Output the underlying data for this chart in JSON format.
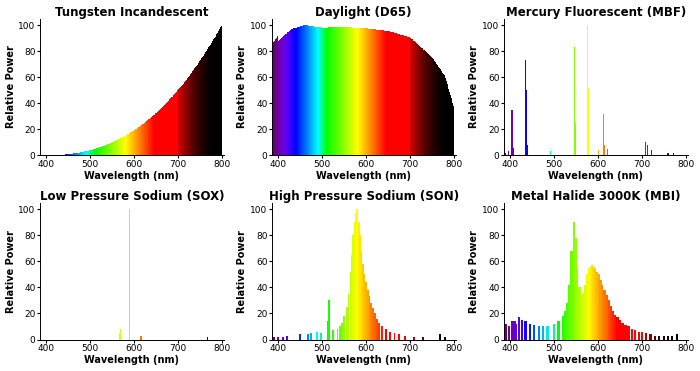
{
  "titles": [
    "Tungsten Incandescent",
    "Daylight (D65)",
    "Mercury Fluorescent (MBF)",
    "Low Pressure Sodium (SOX)",
    "High Pressure Sodium (SON)",
    "Metal Halide 3000K (MBI)"
  ],
  "xlabel": "Wavelength (nm)",
  "ylabel": "Relative Power",
  "xlim": [
    385,
    805
  ],
  "ylim": [
    0,
    105
  ],
  "yticks": [
    0,
    20,
    40,
    60,
    80,
    100
  ],
  "xticks": [
    400,
    500,
    600,
    700,
    800
  ],
  "title_fontsize": 8.5,
  "label_fontsize": 7,
  "tick_fontsize": 6.5,
  "mbf_lines": [
    [
      390,
      2
    ],
    [
      397,
      3
    ],
    [
      404,
      35
    ],
    [
      408,
      6
    ],
    [
      435,
      73
    ],
    [
      436,
      50
    ],
    [
      440,
      8
    ],
    [
      492,
      3
    ],
    [
      546,
      83
    ],
    [
      548,
      25
    ],
    [
      577,
      100
    ],
    [
      579,
      52
    ],
    [
      601,
      4
    ],
    [
      612,
      32
    ],
    [
      615,
      8
    ],
    [
      623,
      5
    ],
    [
      708,
      10
    ],
    [
      714,
      8
    ],
    [
      723,
      4
    ],
    [
      760,
      2
    ],
    [
      773,
      2
    ]
  ],
  "sox_lines": [
    [
      589,
      100
    ],
    [
      590,
      90
    ],
    [
      569,
      8
    ],
    [
      568,
      5
    ],
    [
      616,
      3
    ],
    [
      767,
      2
    ]
  ],
  "son_lines": [
    [
      380,
      1
    ],
    [
      390,
      2
    ],
    [
      400,
      2
    ],
    [
      410,
      2
    ],
    [
      420,
      3
    ],
    [
      450,
      4
    ],
    [
      467,
      4
    ],
    [
      475,
      5
    ],
    [
      489,
      6
    ],
    [
      498,
      5
    ],
    [
      514,
      14
    ],
    [
      516,
      30
    ],
    [
      525,
      7
    ],
    [
      535,
      8
    ],
    [
      540,
      10
    ],
    [
      545,
      13
    ],
    [
      550,
      18
    ],
    [
      556,
      25
    ],
    [
      560,
      35
    ],
    [
      565,
      52
    ],
    [
      568,
      65
    ],
    [
      571,
      80
    ],
    [
      574,
      90
    ],
    [
      577,
      97
    ],
    [
      579,
      100
    ],
    [
      581,
      98
    ],
    [
      584,
      90
    ],
    [
      587,
      80
    ],
    [
      590,
      68
    ],
    [
      593,
      58
    ],
    [
      596,
      50
    ],
    [
      600,
      44
    ],
    [
      604,
      38
    ],
    [
      608,
      33
    ],
    [
      612,
      28
    ],
    [
      616,
      24
    ],
    [
      620,
      20
    ],
    [
      625,
      16
    ],
    [
      630,
      13
    ],
    [
      637,
      10
    ],
    [
      645,
      8
    ],
    [
      655,
      6
    ],
    [
      665,
      5
    ],
    [
      675,
      4
    ],
    [
      690,
      3
    ],
    [
      710,
      2
    ],
    [
      730,
      2
    ],
    [
      769,
      4
    ],
    [
      780,
      2
    ]
  ],
  "mbi_lines": [
    [
      390,
      12
    ],
    [
      397,
      10
    ],
    [
      405,
      14
    ],
    [
      410,
      14
    ],
    [
      413,
      12
    ],
    [
      420,
      17
    ],
    [
      427,
      15
    ],
    [
      435,
      14
    ],
    [
      445,
      12
    ],
    [
      455,
      11
    ],
    [
      465,
      10
    ],
    [
      475,
      10
    ],
    [
      485,
      10
    ],
    [
      500,
      12
    ],
    [
      510,
      14
    ],
    [
      520,
      18
    ],
    [
      526,
      22
    ],
    [
      530,
      28
    ],
    [
      535,
      42
    ],
    [
      540,
      68
    ],
    [
      546,
      90
    ],
    [
      549,
      78
    ],
    [
      553,
      55
    ],
    [
      558,
      40
    ],
    [
      562,
      33
    ],
    [
      566,
      36
    ],
    [
      570,
      42
    ],
    [
      575,
      50
    ],
    [
      579,
      55
    ],
    [
      583,
      56
    ],
    [
      587,
      57
    ],
    [
      590,
      56
    ],
    [
      594,
      54
    ],
    [
      598,
      52
    ],
    [
      602,
      50
    ],
    [
      606,
      46
    ],
    [
      610,
      42
    ],
    [
      615,
      38
    ],
    [
      620,
      34
    ],
    [
      625,
      30
    ],
    [
      630,
      26
    ],
    [
      635,
      22
    ],
    [
      640,
      19
    ],
    [
      645,
      17
    ],
    [
      650,
      15
    ],
    [
      656,
      13
    ],
    [
      663,
      11
    ],
    [
      670,
      10
    ],
    [
      678,
      8
    ],
    [
      685,
      7
    ],
    [
      693,
      6
    ],
    [
      700,
      6
    ],
    [
      710,
      5
    ],
    [
      720,
      4
    ],
    [
      730,
      3
    ],
    [
      740,
      3
    ],
    [
      750,
      3
    ],
    [
      760,
      3
    ],
    [
      770,
      3
    ],
    [
      780,
      4
    ]
  ]
}
